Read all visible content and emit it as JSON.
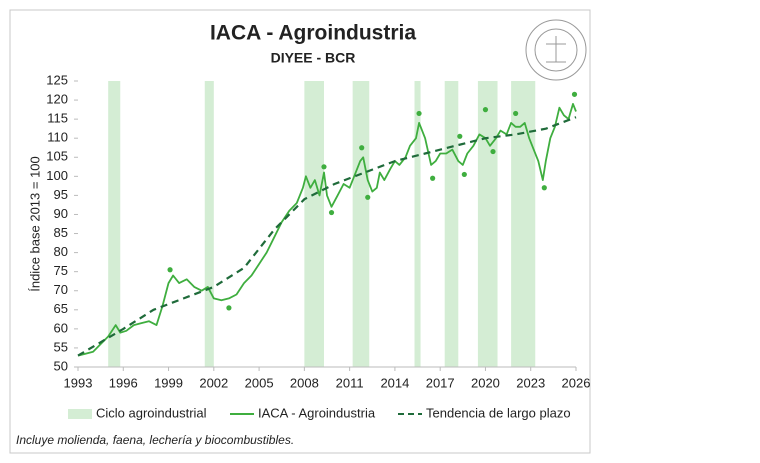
{
  "chart_data": {
    "type": "line",
    "title": "IACA - Agroindustria",
    "subtitle": "DIYEE - BCR",
    "y_label": "Índice base 2013 = 100",
    "note": "Incluye molienda, faena, lechería y biocombustibles.",
    "xlim": [
      1993,
      2026
    ],
    "xticks": [
      1993,
      1996,
      1999,
      2002,
      2005,
      2008,
      2011,
      2014,
      2017,
      2020,
      2023,
      2026
    ],
    "ylim": [
      50,
      125
    ],
    "yticks": [
      50,
      55,
      60,
      65,
      70,
      75,
      80,
      85,
      90,
      95,
      100,
      105,
      110,
      115,
      120,
      125
    ],
    "grid": false,
    "legend": "bottom",
    "series": [
      {
        "name": "Ciclo agroindustrial",
        "type": "band",
        "color": "#d4edd4",
        "ranges": [
          [
            1995,
            1995.8
          ],
          [
            2001.4,
            2002
          ],
          [
            2008,
            2009.3
          ],
          [
            2011.2,
            2012.3
          ],
          [
            2015.3,
            2015.7
          ],
          [
            2017.3,
            2018.2
          ],
          [
            2019.5,
            2020.8
          ],
          [
            2021.7,
            2023.3
          ]
        ]
      },
      {
        "name": "IACA - Agroindustria",
        "type": "line",
        "color": "#3fae3f",
        "x": [
          1993.0,
          1993.5,
          1994.0,
          1994.5,
          1995.0,
          1995.5,
          1995.8,
          1996.2,
          1996.7,
          1997.2,
          1997.7,
          1998.2,
          1998.6,
          1999.0,
          1999.3,
          1999.7,
          2000.2,
          2000.7,
          2001.2,
          2001.6,
          2002.0,
          2002.5,
          2003.0,
          2003.5,
          2004.0,
          2004.5,
          2005.0,
          2005.5,
          2006.0,
          2006.5,
          2007.0,
          2007.5,
          2007.9,
          2008.1,
          2008.4,
          2008.7,
          2009.0,
          2009.3,
          2009.5,
          2009.8,
          2010.2,
          2010.6,
          2011.0,
          2011.3,
          2011.7,
          2011.9,
          2012.2,
          2012.5,
          2012.8,
          2013.0,
          2013.3,
          2013.7,
          2014.0,
          2014.3,
          2014.7,
          2015.0,
          2015.4,
          2015.6,
          2016.0,
          2016.4,
          2016.7,
          2017.0,
          2017.4,
          2017.8,
          2018.2,
          2018.5,
          2018.8,
          2019.2,
          2019.6,
          2020.0,
          2020.3,
          2020.7,
          2021.0,
          2021.4,
          2021.7,
          2022.0,
          2022.3,
          2022.6,
          2022.9,
          2023.2,
          2023.5,
          2023.8,
          2024.0,
          2024.3,
          2024.6,
          2024.9,
          2025.2,
          2025.5,
          2025.8,
          2026.0
        ],
        "values": [
          53,
          53.5,
          54,
          56,
          58,
          61,
          59,
          59.5,
          61,
          61.5,
          62,
          61,
          66,
          72,
          74,
          72,
          73,
          71,
          70,
          71,
          68,
          67.5,
          68,
          69,
          72,
          74,
          77,
          80,
          84,
          88,
          91,
          93,
          97,
          100,
          97,
          99,
          95,
          101,
          95,
          92,
          95,
          98,
          97,
          100,
          104,
          105,
          99,
          96,
          97,
          101,
          99,
          102,
          104,
          103,
          105,
          108,
          110,
          114,
          110,
          103,
          104,
          106,
          106,
          107,
          104,
          103,
          106,
          108,
          111,
          110,
          108,
          110,
          112,
          111,
          114,
          113,
          113,
          114,
          110,
          107,
          104,
          99,
          104,
          110,
          113,
          118,
          116,
          115,
          119,
          117
        ]
      },
      {
        "type": "scatter",
        "color": "#3fae3f",
        "x": [
          1999.1,
          2003.0,
          2009.3,
          2009.8,
          2011.8,
          2012.2,
          2015.6,
          2016.5,
          2018.3,
          2018.6,
          2020.0,
          2020.5,
          2022.0,
          2023.9,
          2025.9
        ],
        "values": [
          75.5,
          65.5,
          102.5,
          90.5,
          107.5,
          94.5,
          116.5,
          99.5,
          110.5,
          100.5,
          117.5,
          106.5,
          116.5,
          97,
          121.5
        ]
      },
      {
        "name": "Tendencia de largo plazo",
        "type": "line",
        "dashed": true,
        "color": "#1f6b3a",
        "x": [
          1993,
          1996,
          1998,
          2000,
          2002,
          2004,
          2006,
          2008,
          2010,
          2012,
          2014,
          2016,
          2018,
          2020,
          2022,
          2024,
          2026
        ],
        "values": [
          53,
          60,
          65,
          68,
          71,
          76,
          86,
          94,
          98,
          101,
          104,
          106,
          108,
          110,
          111,
          112.5,
          115.5
        ]
      }
    ]
  }
}
